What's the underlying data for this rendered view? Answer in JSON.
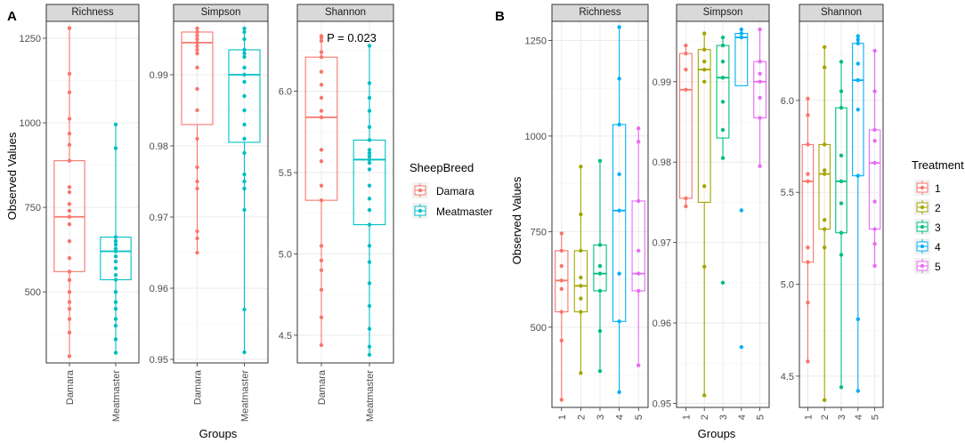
{
  "chart_data": [
    {
      "type": "box",
      "panel_label": "A",
      "xlabel": "Groups",
      "ylabel": "Observed Values",
      "legend": {
        "title": "SheepBreed",
        "entries": [
          "Damara",
          "Meatmaster"
        ],
        "placement": "right"
      },
      "colors": {
        "Damara": "#f8766d",
        "Meatmaster": "#00bfc4"
      },
      "facets": [
        {
          "title": "Richness",
          "ylim": [
            290,
            1300
          ],
          "yticks": [
            500,
            750,
            1000,
            1250
          ],
          "ytick_labels": [
            "500",
            "750",
            "1000",
            "1250"
          ],
          "categories": [
            "Damara",
            "Meatmaster"
          ],
          "annotation": "",
          "groups": [
            {
              "name": "Damara",
              "min": 310,
              "q1": 560,
              "median": 722,
              "q3": 888,
              "max": 1280,
              "points": [
                1280,
                1145,
                1090,
                1012,
                968,
                935,
                888,
                810,
                795,
                760,
                740,
                722,
                700,
                650,
                600,
                560,
                535,
                500,
                470,
                450,
                420,
                380,
                310
              ]
            },
            {
              "name": "Meatmaster",
              "min": 320,
              "q1": 536,
              "median": 620,
              "q3": 662,
              "max": 995,
              "points": [
                995,
                925,
                662,
                650,
                640,
                628,
                620,
                605,
                590,
                570,
                550,
                536,
                500,
                470,
                450,
                420,
                400,
                360,
                320
              ]
            }
          ]
        },
        {
          "title": "Simpson",
          "ylim": [
            0.9495,
            0.9975
          ],
          "yticks": [
            0.95,
            0.96,
            0.97,
            0.98,
            0.99
          ],
          "ytick_labels": [
            "0.95",
            "0.96",
            "0.97",
            "0.98",
            "0.99"
          ],
          "categories": [
            "Damara",
            "Meatmaster"
          ],
          "annotation": "",
          "groups": [
            {
              "name": "Damara",
              "min": 0.965,
              "q1": 0.983,
              "median": 0.9945,
              "q3": 0.996,
              "max": 0.9965,
              "points": [
                0.9965,
                0.996,
                0.9955,
                0.995,
                0.9945,
                0.994,
                0.9935,
                0.993,
                0.991,
                0.988,
                0.985,
                0.981,
                0.977,
                0.975,
                0.974,
                0.968,
                0.967,
                0.965
              ]
            },
            {
              "name": "Meatmaster",
              "min": 0.951,
              "q1": 0.9805,
              "median": 0.99,
              "q3": 0.9935,
              "max": 0.9965,
              "points": [
                0.9965,
                0.996,
                0.995,
                0.9935,
                0.993,
                0.9925,
                0.991,
                0.99,
                0.989,
                0.987,
                0.985,
                0.983,
                0.981,
                0.979,
                0.976,
                0.975,
                0.974,
                0.974,
                0.971,
                0.957,
                0.951
              ]
            }
          ]
        },
        {
          "title": "Shannon",
          "ylim": [
            4.33,
            6.43
          ],
          "yticks": [
            4.5,
            5.0,
            5.5,
            6.0
          ],
          "ytick_labels": [
            "4.5",
            "5.0",
            "5.5",
            "6.0"
          ],
          "categories": [
            "Damara",
            "Meatmaster"
          ],
          "annotation": "P = 0.023",
          "groups": [
            {
              "name": "Damara",
              "min": 4.44,
              "q1": 5.33,
              "median": 5.84,
              "q3": 6.21,
              "max": 6.34,
              "points": [
                6.34,
                6.33,
                6.31,
                6.24,
                6.21,
                6.12,
                6.04,
                5.96,
                5.88,
                5.84,
                5.64,
                5.57,
                5.42,
                5.33,
                5.05,
                4.96,
                4.9,
                4.78,
                4.61,
                4.44
              ]
            },
            {
              "name": "Meatmaster",
              "min": 4.38,
              "q1": 5.18,
              "median": 5.58,
              "q3": 5.7,
              "max": 6.28,
              "points": [
                6.28,
                6.05,
                5.96,
                5.88,
                5.78,
                5.7,
                5.64,
                5.62,
                5.6,
                5.58,
                5.56,
                5.52,
                5.42,
                5.34,
                5.27,
                5.18,
                5.05,
                4.95,
                4.82,
                4.68,
                4.54,
                4.43,
                4.38
              ]
            }
          ]
        }
      ]
    },
    {
      "type": "box",
      "panel_label": "B",
      "xlabel": "Groups",
      "ylabel": "Observed Values",
      "legend": {
        "title": "Treatment",
        "entries": [
          "1",
          "2",
          "3",
          "4",
          "5"
        ],
        "placement": "right"
      },
      "colors": {
        "1": "#f8766d",
        "2": "#a3a500",
        "3": "#00bf7d",
        "4": "#00b0f6",
        "5": "#e76bf3"
      },
      "facets": [
        {
          "title": "Richness",
          "ylim": [
            290,
            1300
          ],
          "yticks": [
            500,
            750,
            1000,
            1250
          ],
          "ytick_labels": [
            "500",
            "750",
            "1000",
            "1250"
          ],
          "categories": [
            "1",
            "2",
            "3",
            "4",
            "5"
          ],
          "annotation": "",
          "groups": [
            {
              "name": "1",
              "min": 310,
              "q1": 540,
              "median": 622,
              "q3": 700,
              "max": 745,
              "points": [
                745,
                700,
                660,
                622,
                600,
                540,
                465,
                310
              ]
            },
            {
              "name": "2",
              "min": 380,
              "q1": 540,
              "median": 608,
              "q3": 700,
              "max": 920,
              "points": [
                920,
                795,
                700,
                630,
                608,
                575,
                540,
                380
              ]
            },
            {
              "name": "3",
              "min": 385,
              "q1": 595,
              "median": 640,
              "q3": 715,
              "max": 935,
              "points": [
                935,
                715,
                660,
                640,
                595,
                490,
                385
              ]
            },
            {
              "name": "4",
              "min": 330,
              "q1": 515,
              "median": 805,
              "q3": 1030,
              "max": 1285,
              "points": [
                1285,
                1150,
                1030,
                900,
                805,
                640,
                515,
                330
              ]
            },
            {
              "name": "5",
              "min": 400,
              "q1": 595,
              "median": 640,
              "q3": 830,
              "max": 1020,
              "points": [
                1020,
                985,
                830,
                700,
                640,
                595,
                400
              ]
            }
          ]
        },
        {
          "title": "Simpson",
          "ylim": [
            0.9495,
            0.9975
          ],
          "yticks": [
            0.95,
            0.96,
            0.97,
            0.98,
            0.99
          ],
          "ytick_labels": [
            "0.95",
            "0.96",
            "0.97",
            "0.98",
            "0.99"
          ],
          "categories": [
            "1",
            "2",
            "3",
            "4",
            "5"
          ],
          "annotation": "",
          "groups": [
            {
              "name": "1",
              "min": 0.9745,
              "q1": 0.9755,
              "median": 0.989,
              "q3": 0.9935,
              "max": 0.9945,
              "points": [
                0.9945,
                0.9935,
                0.9915,
                0.989,
                0.9755,
                0.9745
              ]
            },
            {
              "name": "2",
              "min": 0.951,
              "q1": 0.975,
              "median": 0.9915,
              "q3": 0.994,
              "max": 0.996,
              "points": [
                0.996,
                0.994,
                0.9925,
                0.9915,
                0.99,
                0.977,
                0.967,
                0.951
              ]
            },
            {
              "name": "3",
              "min": 0.9805,
              "q1": 0.983,
              "median": 0.9905,
              "q3": 0.9945,
              "max": 0.9955,
              "points": [
                0.9955,
                0.9945,
                0.9925,
                0.9905,
                0.9875,
                0.984,
                0.9805,
                0.965
              ]
            },
            {
              "name": "4",
              "min": 0.9895,
              "q1": 0.9895,
              "median": 0.9955,
              "q3": 0.996,
              "max": 0.9965,
              "points": [
                0.9965,
                0.996,
                0.9955,
                0.974,
                0.957
              ]
            },
            {
              "name": "5",
              "min": 0.9795,
              "q1": 0.9855,
              "median": 0.99,
              "q3": 0.9925,
              "max": 0.9965,
              "points": [
                0.9965,
                0.9925,
                0.991,
                0.99,
                0.988,
                0.9855,
                0.9795
              ]
            }
          ]
        },
        {
          "title": "Shannon",
          "ylim": [
            4.33,
            6.43
          ],
          "yticks": [
            4.5,
            5.0,
            5.5,
            6.0
          ],
          "ytick_labels": [
            "4.5",
            "5.0",
            "5.5",
            "6.0"
          ],
          "categories": [
            "1",
            "2",
            "3",
            "4",
            "5"
          ],
          "annotation": "",
          "groups": [
            {
              "name": "1",
              "min": 4.58,
              "q1": 5.12,
              "median": 5.56,
              "q3": 5.76,
              "max": 6.01,
              "points": [
                6.01,
                5.92,
                5.76,
                5.6,
                5.56,
                5.2,
                5.12,
                4.9,
                4.58
              ]
            },
            {
              "name": "2",
              "min": 4.37,
              "q1": 5.3,
              "median": 5.6,
              "q3": 5.76,
              "max": 6.29,
              "points": [
                6.29,
                6.18,
                5.76,
                5.62,
                5.6,
                5.35,
                5.3,
                5.2,
                4.37
              ]
            },
            {
              "name": "3",
              "min": 4.44,
              "q1": 5.28,
              "median": 5.56,
              "q3": 5.96,
              "max": 6.21,
              "points": [
                6.21,
                6.05,
                5.96,
                5.7,
                5.56,
                5.44,
                5.28,
                5.16,
                4.44
              ]
            },
            {
              "name": "4",
              "min": 4.42,
              "q1": 5.59,
              "median": 6.11,
              "q3": 6.31,
              "max": 6.35,
              "points": [
                6.35,
                6.33,
                6.31,
                6.2,
                6.11,
                5.95,
                5.59,
                4.81,
                4.42
              ]
            },
            {
              "name": "5",
              "min": 5.1,
              "q1": 5.3,
              "median": 5.66,
              "q3": 5.84,
              "max": 6.27,
              "points": [
                6.27,
                6.05,
                5.84,
                5.78,
                5.66,
                5.45,
                5.3,
                5.22,
                5.1
              ]
            }
          ]
        }
      ]
    }
  ]
}
